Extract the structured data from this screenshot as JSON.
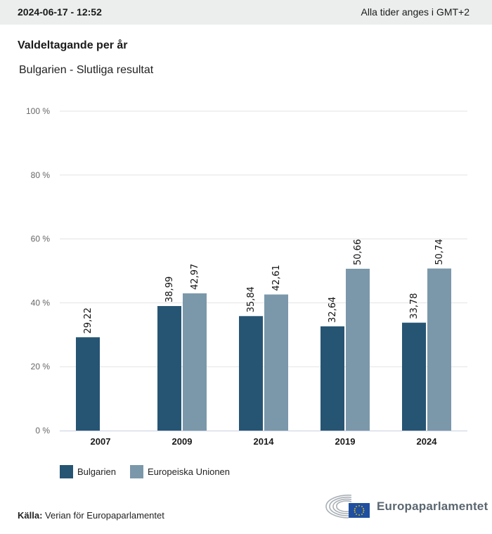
{
  "header": {
    "timestamp": "2024-06-17 - 12:52",
    "timezone_note": "Alla tider anges i GMT+2"
  },
  "title": "Valdeltagande per år",
  "subtitle": "Bulgarien - Slutliga resultat",
  "colors": {
    "bulgaria": "#265573",
    "eu": "#7b98ab",
    "grid": "#e3e3e3",
    "axis": "#c8cfe0"
  },
  "chart_data": {
    "type": "bar",
    "title": "Valdeltagande per år",
    "subtitle": "Bulgarien - Slutliga resultat",
    "xlabel": "",
    "ylabel": "",
    "categories": [
      "2007",
      "2009",
      "2014",
      "2019",
      "2024"
    ],
    "series": [
      {
        "name": "Bulgarien",
        "values": [
          29.22,
          38.99,
          35.84,
          32.64,
          33.78
        ],
        "labels": [
          "29,22",
          "38,99",
          "35,84",
          "32,64",
          "33,78"
        ]
      },
      {
        "name": "Europeiska Unionen",
        "values": [
          null,
          42.97,
          42.61,
          50.66,
          50.74
        ],
        "labels": [
          null,
          "42,97",
          "42,61",
          "50,66",
          "50,74"
        ]
      }
    ],
    "ylim": [
      0,
      100
    ],
    "yticks": [
      0,
      20,
      40,
      60,
      80,
      100
    ],
    "ytick_labels": [
      "0 %",
      "20 %",
      "40 %",
      "60 %",
      "80 %",
      "100 %"
    ],
    "grid": true,
    "legend": "bottom-left"
  },
  "legend": {
    "items": [
      "Bulgarien",
      "Europeiska Unionen"
    ]
  },
  "footer": {
    "source_label": "Källa:",
    "source_text": "Verian för Europaparlamentet",
    "logo_text": "Europaparlamentet"
  }
}
